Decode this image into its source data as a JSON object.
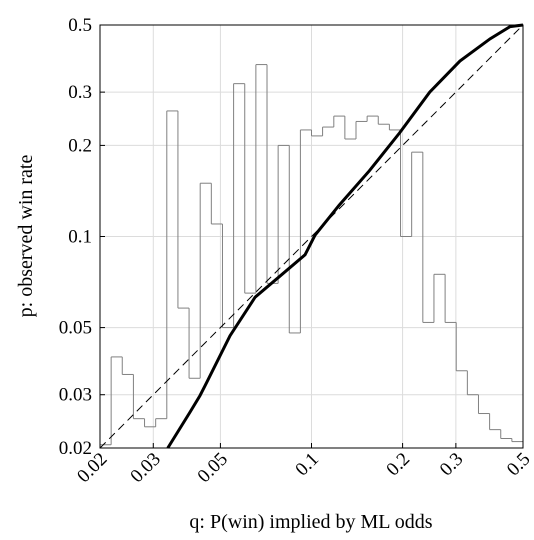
{
  "chart_data": {
    "type": "line",
    "xlabel": "q: P(win) implied by ML odds",
    "ylabel": "p: observed win rate",
    "xscale": "log",
    "yscale": "log",
    "xlim": [
      0.02,
      0.5
    ],
    "ylim": [
      0.02,
      0.5
    ],
    "xticks": [
      0.02,
      0.03,
      0.05,
      0.1,
      0.2,
      0.3,
      0.5
    ],
    "yticks": [
      0.02,
      0.03,
      0.05,
      0.1,
      0.2,
      0.3,
      0.5
    ],
    "grid": true,
    "series": [
      {
        "type": "step",
        "color": "#808080",
        "bins": [
          0.02,
          0.02177,
          0.02369,
          0.02579,
          0.02807,
          0.03055,
          0.03325,
          0.03619,
          0.03939,
          0.04287,
          0.04666,
          0.05079,
          0.05528,
          0.06017,
          0.06549,
          0.07128,
          0.07758,
          0.08444,
          0.0919,
          0.1,
          0.1088,
          0.1185,
          0.1289,
          0.1403,
          0.1527,
          0.1662,
          0.1809,
          0.1969,
          0.2143,
          0.2333,
          0.2539,
          0.2764,
          0.3008,
          0.3274,
          0.3563,
          0.3878,
          0.4221,
          0.4594,
          0.5
        ],
        "values": [
          0.0205,
          0.04,
          0.035,
          0.025,
          0.0235,
          0.025,
          0.26,
          0.058,
          0.034,
          0.15,
          0.11,
          0.05,
          0.32,
          0.065,
          0.37,
          0.07,
          0.2,
          0.048,
          0.225,
          0.215,
          0.23,
          0.25,
          0.21,
          0.24,
          0.25,
          0.235,
          0.225,
          0.1,
          0.19,
          0.052,
          0.075,
          0.052,
          0.036,
          0.03,
          0.026,
          0.023,
          0.0215,
          0.021
        ]
      },
      {
        "type": "line",
        "color": "#000000",
        "width": 3,
        "x": [
          0.0335,
          0.0397,
          0.0428,
          0.0444,
          0.0538,
          0.0651,
          0.0787,
          0.0952,
          0.1027,
          0.1235,
          0.1554,
          0.1955,
          0.2459,
          0.3094,
          0.3892,
          0.4532,
          0.5
        ],
        "values": [
          0.02,
          0.0263,
          0.0298,
          0.032,
          0.047,
          0.063,
          0.074,
          0.087,
          0.101,
          0.127,
          0.165,
          0.22,
          0.3,
          0.38,
          0.45,
          0.494,
          0.5
        ]
      },
      {
        "type": "line",
        "color": "#000000",
        "width": 1,
        "dashed": true,
        "x": [
          0.02,
          0.5
        ],
        "values": [
          0.02,
          0.5
        ]
      }
    ]
  }
}
